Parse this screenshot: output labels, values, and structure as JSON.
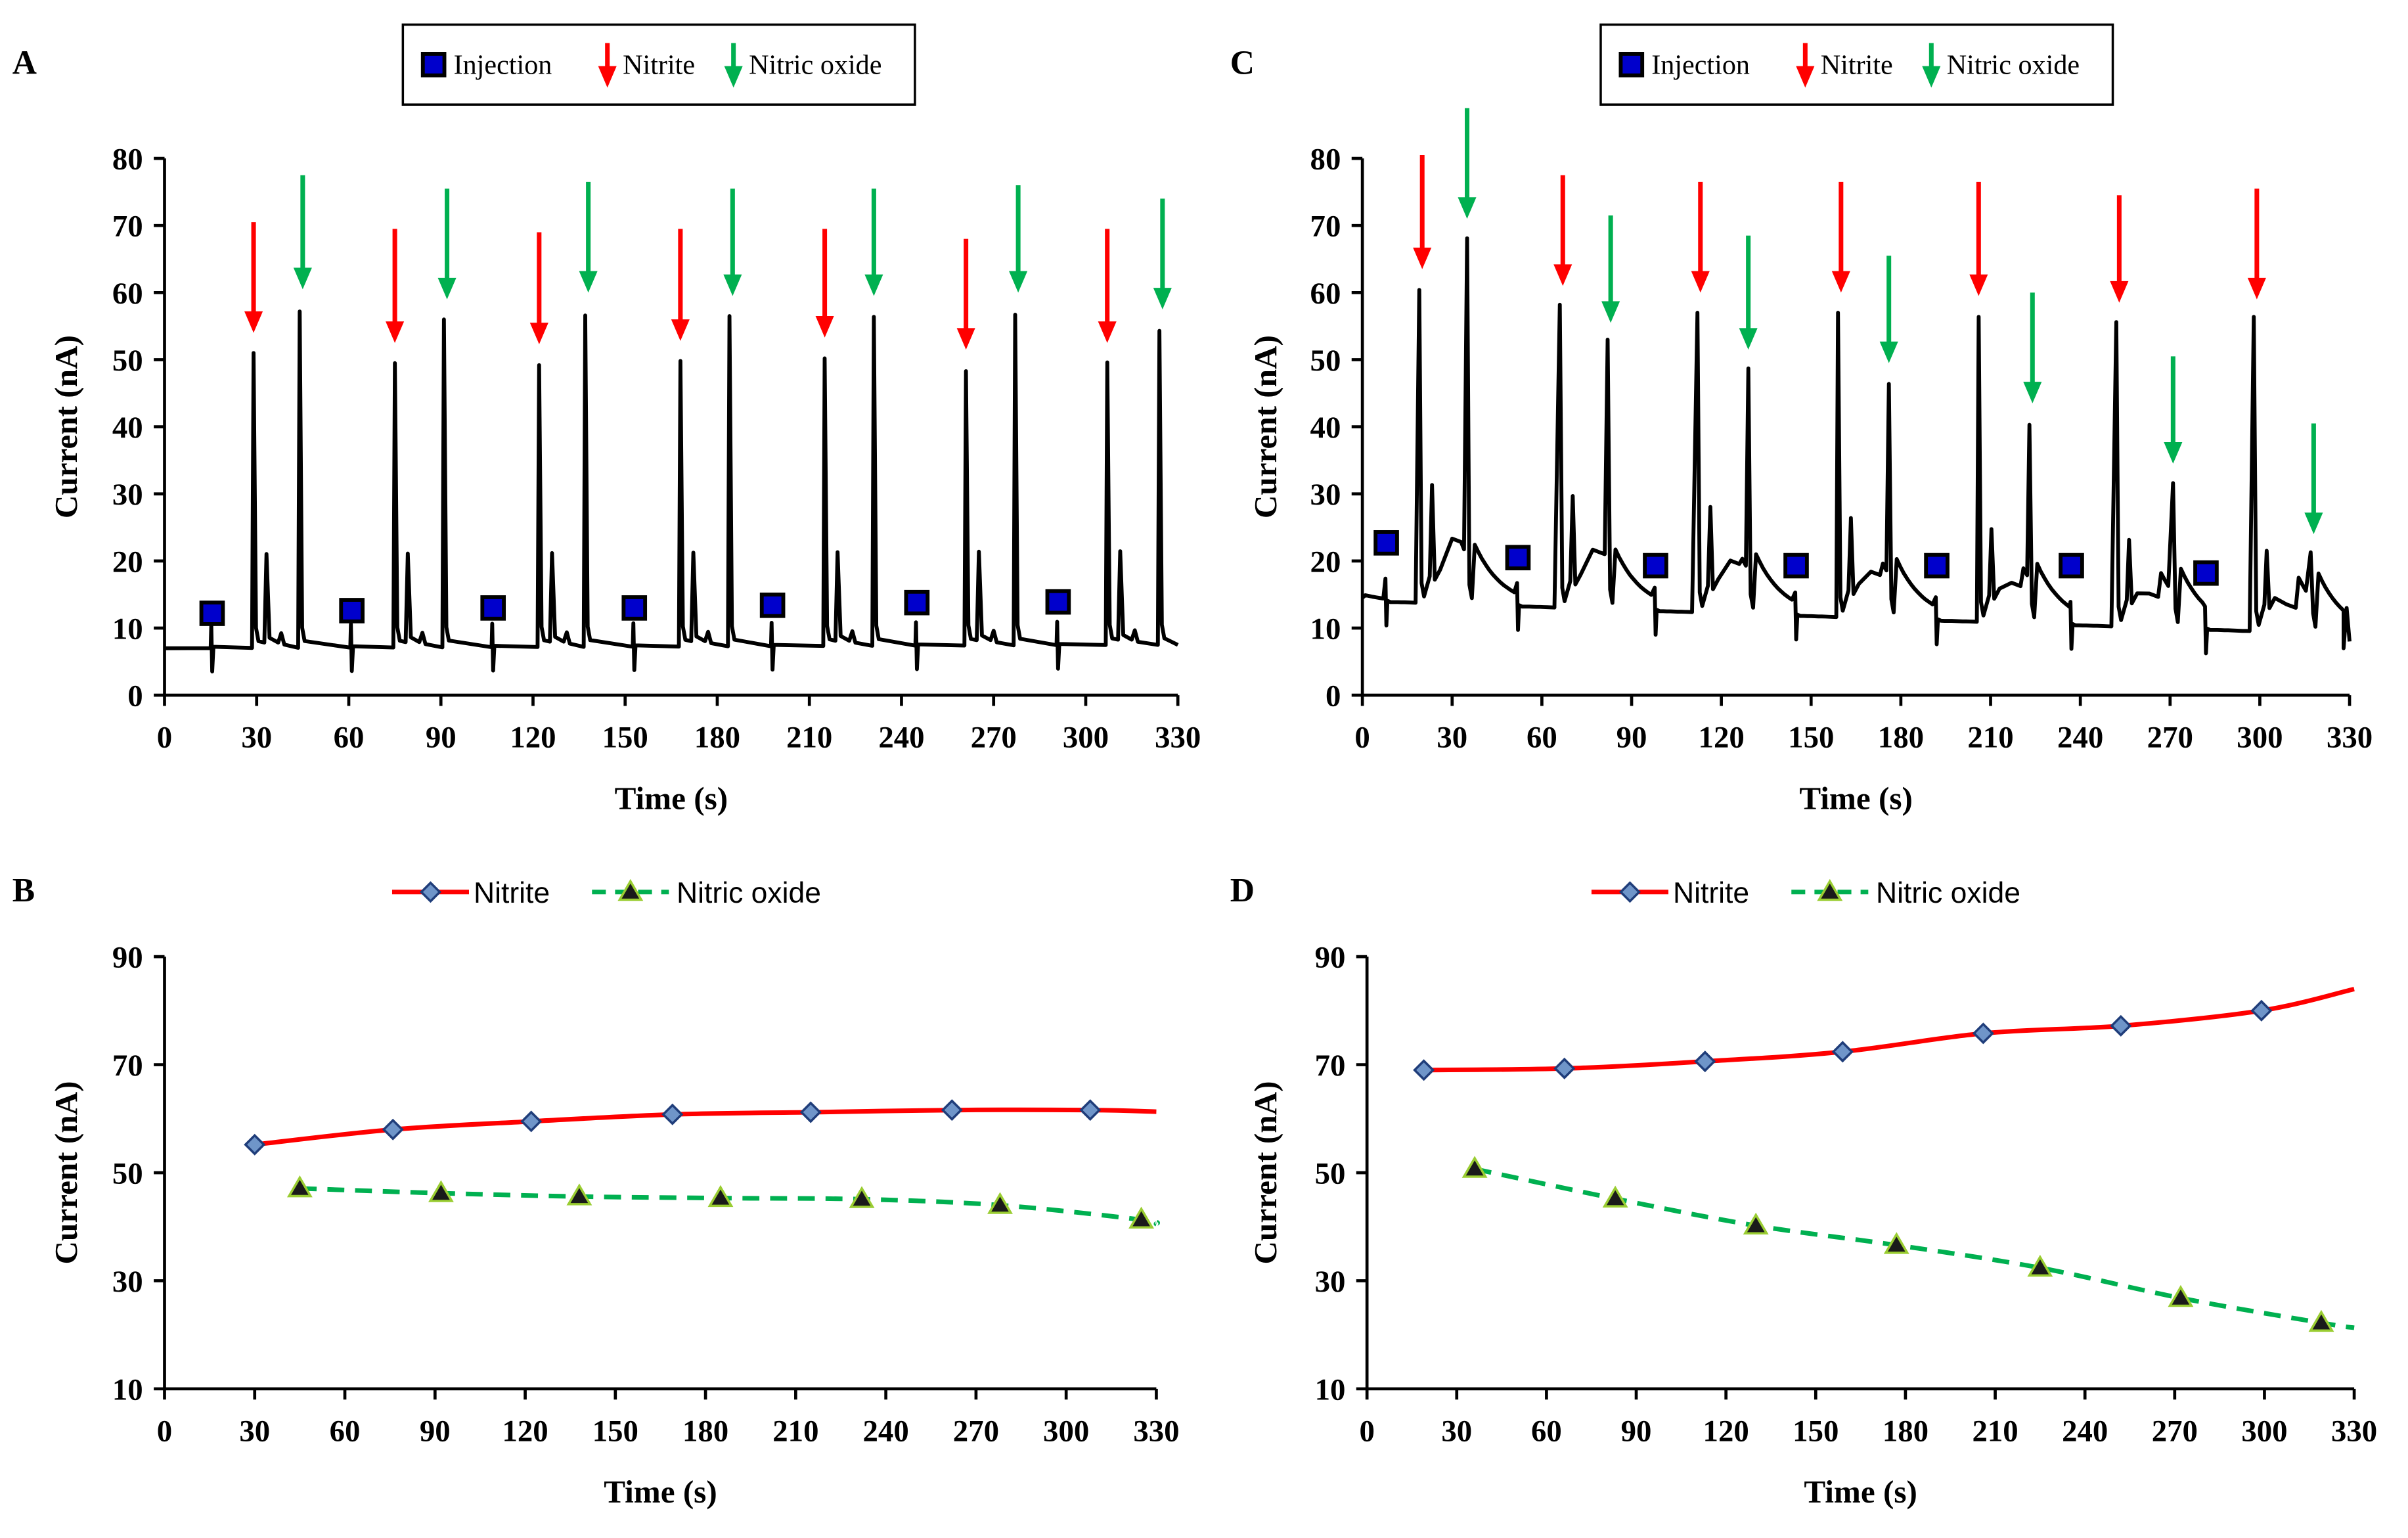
{
  "colors": {
    "nitrite": "#ff0000",
    "nitric_oxide": "#00b050",
    "injection": "#0000cc",
    "trace": "#000000",
    "marker_nitrite": "#1f3d7a",
    "marker_no": "#9acd32"
  },
  "chart_data": [
    {
      "id": "A",
      "panel_label": "A",
      "type": "line",
      "xlabel": "Time (s)",
      "ylabel": "Current (nA)",
      "xlim": [
        0,
        330
      ],
      "ylim": [
        0,
        80
      ],
      "xticks": [
        0,
        30,
        60,
        90,
        120,
        150,
        180,
        210,
        240,
        270,
        300,
        330
      ],
      "yticks": [
        0,
        10,
        20,
        30,
        40,
        50,
        60,
        70,
        80
      ],
      "legend": {
        "position": "top-center",
        "entries": [
          "Injection",
          "Nitrite",
          "Nitric oxide"
        ]
      },
      "baseline": [
        [
          0,
          7.0
        ],
        [
          330,
          7.5
        ]
      ],
      "injections": [
        {
          "x": 15.5,
          "y": 12.2
        },
        {
          "x": 61,
          "y": 12.6
        },
        {
          "x": 107,
          "y": 13.0
        },
        {
          "x": 153,
          "y": 13.0
        },
        {
          "x": 198,
          "y": 13.4
        },
        {
          "x": 245,
          "y": 13.8
        },
        {
          "x": 291,
          "y": 13.9
        }
      ],
      "nitrite_peaks": [
        {
          "x": 29,
          "y": 51
        },
        {
          "x": 75,
          "y": 49.5
        },
        {
          "x": 122,
          "y": 49.2
        },
        {
          "x": 168,
          "y": 49.8
        },
        {
          "x": 215,
          "y": 50.2
        },
        {
          "x": 261,
          "y": 48.3
        },
        {
          "x": 307,
          "y": 49.6
        }
      ],
      "no_peaks": [
        {
          "x": 44,
          "y": 57.2
        },
        {
          "x": 91,
          "y": 56.0
        },
        {
          "x": 137,
          "y": 56.6
        },
        {
          "x": 184,
          "y": 56.5
        },
        {
          "x": 231,
          "y": 56.4
        },
        {
          "x": 277,
          "y": 56.7
        },
        {
          "x": 324,
          "y": 54.3
        }
      ],
      "nitrite_arrows": [
        {
          "x": 29,
          "top": 70.5,
          "tip": 54
        },
        {
          "x": 75,
          "top": 69.5,
          "tip": 52.5
        },
        {
          "x": 122,
          "top": 69.0,
          "tip": 52.3
        },
        {
          "x": 168,
          "top": 69.5,
          "tip": 52.8
        },
        {
          "x": 215,
          "top": 69.5,
          "tip": 53.3
        },
        {
          "x": 261,
          "top": 68.0,
          "tip": 51.5
        },
        {
          "x": 307,
          "top": 69.5,
          "tip": 52.5
        }
      ],
      "no_arrows": [
        {
          "x": 45,
          "top": 77.5,
          "tip": 60.5
        },
        {
          "x": 92,
          "top": 75.5,
          "tip": 59
        },
        {
          "x": 138,
          "top": 76.5,
          "tip": 60
        },
        {
          "x": 185,
          "top": 75.5,
          "tip": 59.5
        },
        {
          "x": 231,
          "top": 75.5,
          "tip": 59.5
        },
        {
          "x": 278,
          "top": 76.0,
          "tip": 60
        },
        {
          "x": 325,
          "top": 74.0,
          "tip": 57.5
        }
      ]
    },
    {
      "id": "C",
      "panel_label": "C",
      "type": "line",
      "xlabel": "Time (s)",
      "ylabel": "Current (nA)",
      "xlim": [
        0,
        330
      ],
      "ylim": [
        0,
        80
      ],
      "xticks": [
        0,
        30,
        60,
        90,
        120,
        150,
        180,
        210,
        240,
        270,
        300,
        330
      ],
      "yticks": [
        0,
        10,
        20,
        30,
        40,
        50,
        60,
        70,
        80
      ],
      "legend": {
        "position": "top-center",
        "entries": [
          "Injection",
          "Nitrite",
          "Nitric oxide"
        ]
      },
      "injections": [
        {
          "x": 8,
          "y": 22.7
        },
        {
          "x": 52,
          "y": 20.5
        },
        {
          "x": 98,
          "y": 19.3
        },
        {
          "x": 145,
          "y": 19.3
        },
        {
          "x": 192,
          "y": 19.3
        },
        {
          "x": 237,
          "y": 19.3
        },
        {
          "x": 282,
          "y": 18.2
        }
      ],
      "nitrite_peaks": [
        {
          "x": 19,
          "y": 60.4
        },
        {
          "x": 66,
          "y": 58.2
        },
        {
          "x": 112,
          "y": 57.0
        },
        {
          "x": 159,
          "y": 57.0
        },
        {
          "x": 206,
          "y": 56.4
        },
        {
          "x": 252,
          "y": 55.6
        },
        {
          "x": 298,
          "y": 56.4
        }
      ],
      "no_peaks": [
        {
          "x": 35,
          "y": 68.1
        },
        {
          "x": 82,
          "y": 53.0
        },
        {
          "x": 129,
          "y": 48.7
        },
        {
          "x": 176,
          "y": 46.4
        },
        {
          "x": 223,
          "y": 40.3
        },
        {
          "x": 271,
          "y": 31.6
        },
        {
          "x": 317,
          "y": 21.3
        }
      ],
      "nitrite_arrows": [
        {
          "x": 20,
          "top": 80.5,
          "tip": 63.5
        },
        {
          "x": 67,
          "top": 77.5,
          "tip": 61
        },
        {
          "x": 113,
          "top": 76.5,
          "tip": 60
        },
        {
          "x": 160,
          "top": 76.5,
          "tip": 60
        },
        {
          "x": 206,
          "top": 76.5,
          "tip": 59.5
        },
        {
          "x": 253,
          "top": 74.5,
          "tip": 58.5
        },
        {
          "x": 299,
          "top": 75.5,
          "tip": 59
        }
      ],
      "no_arrows": [
        {
          "x": 35,
          "top": 87.5,
          "tip": 71
        },
        {
          "x": 83,
          "top": 71.5,
          "tip": 55.5
        },
        {
          "x": 129,
          "top": 68.5,
          "tip": 51.5
        },
        {
          "x": 176,
          "top": 65.5,
          "tip": 49.5
        },
        {
          "x": 224,
          "top": 60.0,
          "tip": 43.5
        },
        {
          "x": 271,
          "top": 50.5,
          "tip": 34.5
        },
        {
          "x": 318,
          "top": 40.5,
          "tip": 24.0
        }
      ]
    },
    {
      "id": "B",
      "panel_label": "B",
      "type": "line",
      "xlabel": "Time (s)",
      "ylabel": "Current (nA)",
      "xlim": [
        0,
        330
      ],
      "ylim": [
        10,
        90
      ],
      "xticks": [
        0,
        30,
        60,
        90,
        120,
        150,
        180,
        210,
        240,
        270,
        300,
        330
      ],
      "yticks": [
        10,
        30,
        50,
        70,
        90
      ],
      "legend": {
        "position": "top-center",
        "entries": [
          "Nitrite",
          "Nitric oxide"
        ]
      },
      "series": [
        {
          "name": "Nitrite",
          "x": [
            30,
            76,
            122,
            169,
            215,
            262,
            308
          ],
          "y": [
            55.2,
            58.0,
            59.5,
            60.8,
            61.2,
            61.6,
            61.6
          ],
          "end": [
            330,
            61.3
          ]
        },
        {
          "name": "Nitric oxide",
          "x": [
            45,
            92,
            138,
            185,
            232,
            278,
            325
          ],
          "y": [
            47.1,
            46.2,
            45.6,
            45.3,
            45.1,
            44.0,
            41.3
          ],
          "end": [
            330,
            40.5
          ]
        }
      ]
    },
    {
      "id": "D",
      "panel_label": "D",
      "type": "line",
      "xlabel": "Time (s)",
      "ylabel": "Current (nA)",
      "xlim": [
        0,
        330
      ],
      "ylim": [
        10,
        90
      ],
      "xticks": [
        0,
        30,
        60,
        90,
        120,
        150,
        180,
        210,
        240,
        270,
        300,
        330
      ],
      "yticks": [
        10,
        30,
        50,
        70,
        90
      ],
      "legend": {
        "position": "top-center",
        "entries": [
          "Nitrite",
          "Nitric oxide"
        ]
      },
      "series": [
        {
          "name": "Nitrite",
          "x": [
            19,
            66,
            113,
            159,
            206,
            252,
            299
          ],
          "y": [
            69.0,
            69.3,
            70.6,
            72.4,
            75.8,
            77.2,
            80.0
          ],
          "end": [
            330,
            84.0
          ]
        },
        {
          "name": "Nitric oxide",
          "x": [
            36,
            83,
            130,
            177,
            225,
            272,
            319
          ],
          "y": [
            50.7,
            45.2,
            40.2,
            36.6,
            32.4,
            26.8,
            22.2
          ],
          "end": [
            330,
            21.3
          ]
        }
      ]
    }
  ]
}
